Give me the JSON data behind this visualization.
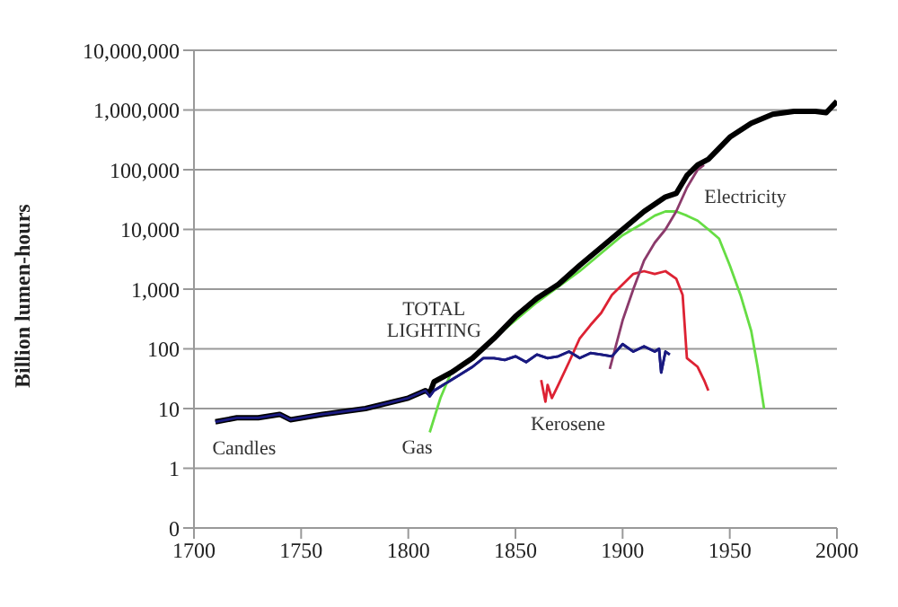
{
  "chart_data": {
    "type": "line",
    "ylabel": "Billion lumen-hours",
    "log": "y",
    "grid": "y",
    "legend": false,
    "marker": "none",
    "line_style": "solid",
    "xlim": [
      1700,
      2000
    ],
    "xticks": [
      1700,
      1750,
      1800,
      1850,
      1900,
      1950,
      2000
    ],
    "ylim": [
      0.1,
      10000000
    ],
    "yticks": [
      {
        "value": 0.1,
        "label": "0"
      },
      1,
      10,
      100,
      {
        "value": 1000,
        "label": "1,000"
      },
      {
        "value": 10000,
        "label": "10,000"
      },
      {
        "value": 100000,
        "label": "100,000"
      },
      {
        "value": 1000000,
        "label": "1,000,000"
      },
      {
        "value": 10000000,
        "label": "10,000,000"
      }
    ],
    "series": [
      {
        "name": "Candles",
        "color": "#1a1a80",
        "x": [
          1710,
          1720,
          1730,
          1740,
          1745,
          1760,
          1780,
          1800,
          1808,
          1810,
          1812,
          1820,
          1830,
          1835,
          1840,
          1845,
          1850,
          1855,
          1860,
          1865,
          1870,
          1875,
          1880,
          1885,
          1890,
          1895,
          1900,
          1905,
          1910,
          1915,
          1917,
          1918,
          1920,
          1922
        ],
        "values": [
          6,
          7,
          7,
          8,
          6.5,
          8,
          10,
          15,
          20,
          16,
          20,
          30,
          50,
          70,
          70,
          65,
          75,
          60,
          80,
          70,
          75,
          90,
          70,
          85,
          80,
          75,
          120,
          90,
          110,
          90,
          100,
          40,
          90,
          80
        ]
      },
      {
        "name": "Gas",
        "color": "#66dd44",
        "x": [
          1810,
          1815,
          1820,
          1830,
          1840,
          1850,
          1860,
          1870,
          1880,
          1890,
          1900,
          1910,
          1915,
          1920,
          1925,
          1930,
          1935,
          1940,
          1945,
          1950,
          1955,
          1960,
          1963,
          1966
        ],
        "values": [
          4,
          15,
          40,
          70,
          150,
          300,
          600,
          1100,
          2000,
          4000,
          8000,
          13000,
          17000,
          20000,
          20000,
          17000,
          14000,
          10000,
          7000,
          2500,
          800,
          200,
          50,
          10
        ]
      },
      {
        "name": "Kerosene",
        "color": "#dd2233",
        "x": [
          1862,
          1864,
          1865,
          1867,
          1870,
          1875,
          1880,
          1885,
          1890,
          1895,
          1900,
          1905,
          1910,
          1915,
          1920,
          1925,
          1928,
          1930,
          1935,
          1938,
          1940
        ],
        "values": [
          30,
          13,
          25,
          15,
          25,
          60,
          150,
          250,
          400,
          800,
          1200,
          1800,
          2000,
          1800,
          2000,
          1500,
          800,
          70,
          50,
          30,
          20
        ]
      },
      {
        "name": "Electricity",
        "color": "#8b3a6b",
        "x": [
          1894,
          1900,
          1905,
          1910,
          1915,
          1920,
          1925,
          1930,
          1935,
          1938
        ],
        "values": [
          46,
          300,
          1000,
          3000,
          6000,
          10000,
          20000,
          50000,
          100000,
          120000
        ]
      },
      {
        "name": "TOTAL LIGHTING",
        "color": "#000000",
        "x": [
          1710,
          1720,
          1730,
          1740,
          1745,
          1760,
          1780,
          1800,
          1808,
          1810,
          1812,
          1820,
          1830,
          1840,
          1850,
          1860,
          1870,
          1880,
          1890,
          1900,
          1910,
          1920,
          1925,
          1930,
          1935,
          1940,
          1950,
          1960,
          1970,
          1980,
          1990,
          1995,
          2000
        ],
        "values": [
          6,
          7,
          7,
          8,
          6.5,
          8,
          10,
          15,
          20,
          18,
          28,
          40,
          70,
          150,
          350,
          700,
          1200,
          2500,
          5000,
          10000,
          20000,
          35000,
          40000,
          80000,
          120000,
          150000,
          350000,
          600000,
          850000,
          950000,
          950000,
          900000,
          1400000
        ]
      }
    ]
  }
}
